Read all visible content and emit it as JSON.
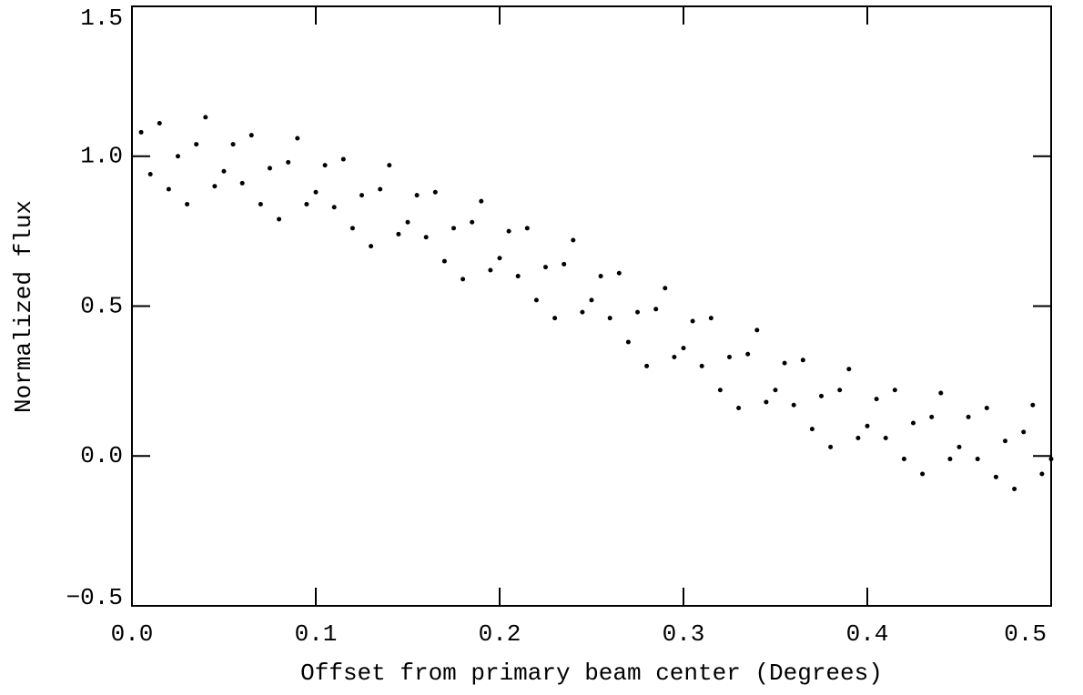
{
  "chart_data": {
    "type": "scatter",
    "xlabel": "Offset from primary beam center (Degrees)",
    "ylabel": "Normalized flux",
    "color": "#000000",
    "x": [
      0.005,
      0.01,
      0.015,
      0.02,
      0.025,
      0.03,
      0.035,
      0.04,
      0.045,
      0.05,
      0.055,
      0.06,
      0.065,
      0.07,
      0.075,
      0.08,
      0.085,
      0.09,
      0.095,
      0.1,
      0.105,
      0.11,
      0.115,
      0.12,
      0.125,
      0.13,
      0.135,
      0.14,
      0.145,
      0.15,
      0.155,
      0.16,
      0.165,
      0.17,
      0.175,
      0.18,
      0.185,
      0.19,
      0.195,
      0.2,
      0.205,
      0.21,
      0.215,
      0.22,
      0.225,
      0.23,
      0.235,
      0.24,
      0.245,
      0.25,
      0.255,
      0.26,
      0.265,
      0.27,
      0.275,
      0.28,
      0.285,
      0.29,
      0.295,
      0.3,
      0.305,
      0.31,
      0.315,
      0.32,
      0.325,
      0.33,
      0.335,
      0.34,
      0.345,
      0.35,
      0.355,
      0.36,
      0.365,
      0.37,
      0.375,
      0.38,
      0.385,
      0.39,
      0.395,
      0.4,
      0.405,
      0.41,
      0.415,
      0.42,
      0.425,
      0.43,
      0.435,
      0.44,
      0.445,
      0.45,
      0.455,
      0.46,
      0.465,
      0.47,
      0.475,
      0.48,
      0.485,
      0.49,
      0.495,
      0.5
    ],
    "values": [
      1.08,
      0.94,
      1.11,
      0.89,
      1.0,
      0.84,
      1.04,
      1.13,
      0.9,
      0.95,
      1.04,
      0.91,
      1.07,
      0.84,
      0.96,
      0.79,
      0.98,
      1.06,
      0.84,
      0.88,
      0.97,
      0.83,
      0.99,
      0.76,
      0.87,
      0.7,
      0.89,
      0.97,
      0.74,
      0.78,
      0.87,
      0.73,
      0.88,
      0.65,
      0.76,
      0.59,
      0.78,
      0.85,
      0.62,
      0.66,
      0.75,
      0.6,
      0.76,
      0.52,
      0.63,
      0.46,
      0.64,
      0.72,
      0.48,
      0.52,
      0.6,
      0.46,
      0.61,
      0.38,
      0.48,
      0.3,
      0.49,
      0.56,
      0.33,
      0.36,
      0.45,
      0.3,
      0.46,
      0.22,
      0.33,
      0.16,
      0.34,
      0.42,
      0.18,
      0.22,
      0.31,
      0.17,
      0.32,
      0.09,
      0.2,
      0.03,
      0.22,
      0.29,
      0.06,
      0.1,
      0.19,
      0.06,
      0.22,
      -0.01,
      0.11,
      -0.06,
      0.13,
      0.21,
      -0.01,
      0.03,
      0.13,
      -0.01,
      0.16,
      -0.07,
      0.05,
      -0.11,
      0.08,
      0.17,
      -0.06,
      -0.01
    ],
    "xlim": [
      0,
      0.5
    ],
    "ylim": [
      -0.5,
      1.5
    ],
    "xticks": [
      {
        "value": 0,
        "label": "0.0"
      },
      0.1,
      0.2,
      0.3,
      0.4,
      0.5
    ],
    "yticks": [
      {
        "value": -0.5,
        "label": "−0.5"
      },
      {
        "value": 0,
        "label": "0.0"
      },
      0.5,
      {
        "value": 1,
        "label": "1.0"
      },
      1.5
    ]
  }
}
